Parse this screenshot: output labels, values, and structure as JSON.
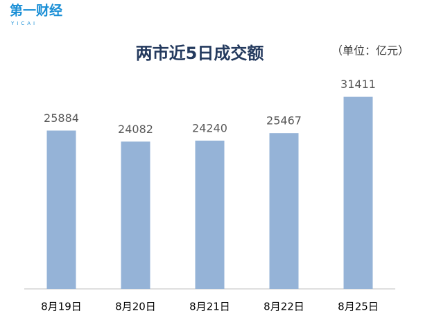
{
  "logo": {
    "text": "第一财经",
    "subtext": "YICAI"
  },
  "chart_data": {
    "type": "bar",
    "title": "两市近5日成交额",
    "unit_note": "（单位：亿元）",
    "categories": [
      "8月19日",
      "8月20日",
      "8月21日",
      "8月22日",
      "8月25日"
    ],
    "values": [
      25884,
      24082,
      24240,
      25467,
      31411
    ],
    "color": "#95b3d7",
    "ylim": [
      0,
      35000
    ],
    "data_labels": true
  }
}
